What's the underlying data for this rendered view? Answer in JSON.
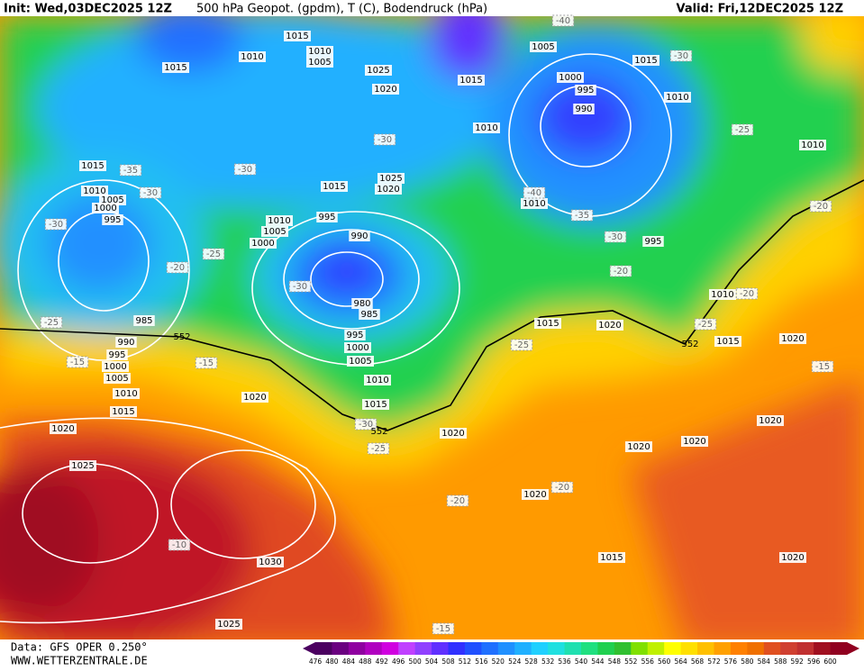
{
  "header": {
    "init": "Init: Wed,03DEC2025 12Z",
    "title": "500 hPa Geopot. (gpdm), T (C), Bodendruck (hPa)",
    "valid": "Valid: Fri,12DEC2025 12Z"
  },
  "footer": {
    "data": "Data: GFS OPER 0.250°",
    "site": "WWW.WETTERZENTRALE.DE"
  },
  "legend": {
    "levels": [
      476,
      480,
      484,
      488,
      492,
      496,
      500,
      504,
      508,
      512,
      516,
      520,
      524,
      528,
      532,
      536,
      540,
      544,
      548,
      552,
      556,
      560,
      564,
      568,
      572,
      576,
      580,
      584,
      588,
      592,
      596,
      600
    ],
    "colors": [
      "#4b0060",
      "#6a0080",
      "#8f00a0",
      "#b000c0",
      "#d000e0",
      "#c040ff",
      "#9040ff",
      "#6030ff",
      "#3030ff",
      "#2050ff",
      "#2070ff",
      "#2090ff",
      "#20b0ff",
      "#20d0ff",
      "#20e0e0",
      "#20e0b0",
      "#20e080",
      "#20d050",
      "#30c030",
      "#80e000",
      "#c0f000",
      "#ffff00",
      "#ffe000",
      "#ffc000",
      "#ffa000",
      "#ff8000",
      "#f07000",
      "#e05020",
      "#d04030",
      "#c03030",
      "#a01020",
      "#900020"
    ]
  },
  "map": {
    "isobar_labels": [
      "1015",
      "1010",
      "1010",
      "1005",
      "1015",
      "1025",
      "1020",
      "1015",
      "1010",
      "1005",
      "1015",
      "1000",
      "995",
      "990",
      "1010",
      "1010",
      "1015",
      "1010",
      "1005",
      "1000",
      "995",
      "1015",
      "1025",
      "1020",
      "995",
      "1010",
      "1005",
      "1000",
      "990",
      "1010",
      "995",
      "980",
      "985",
      "985",
      "990",
      "995",
      "1000",
      "1005",
      "1010",
      "1015",
      "995",
      "1000",
      "1005",
      "1010",
      "1015",
      "1020",
      "1020",
      "1025",
      "1020",
      "1020",
      "1015",
      "1010",
      "1015",
      "1020",
      "1020",
      "1020",
      "1020",
      "1020",
      "1030",
      "1015",
      "1020",
      "1025"
    ],
    "temperature_labels": [
      "-40",
      "-30",
      "-25",
      "-30",
      "-35",
      "-30",
      "-30",
      "-35",
      "-30",
      "-40",
      "-25",
      "-20",
      "-20",
      "-30",
      "-25",
      "-20",
      "-25",
      "-25",
      "-15",
      "-15",
      "-15",
      "-20",
      "-30",
      "-25",
      "-20",
      "-20",
      "-10",
      "-15",
      "-30"
    ],
    "geopotential_labels": [
      "552",
      "552",
      "552"
    ]
  }
}
